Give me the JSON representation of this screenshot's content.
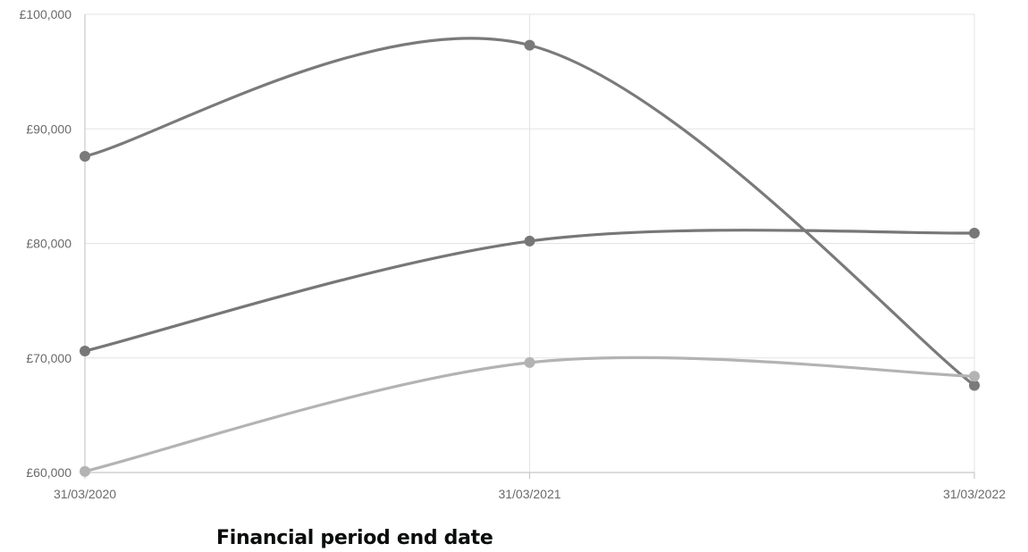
{
  "chart_data": {
    "type": "line",
    "x": [
      "31/03/2020",
      "31/03/2021",
      "31/03/2022"
    ],
    "xlabel": "Financial period end date",
    "ylabel": "",
    "ylim": [
      60000,
      100000
    ],
    "yticks": [
      60000,
      70000,
      80000,
      90000,
      100000
    ],
    "ytick_labels": [
      "£60,000",
      "£70,000",
      "£80,000",
      "£90,000",
      "£100,000"
    ],
    "grid": true,
    "smooth": true,
    "series": [
      {
        "values": [
          87600,
          97300,
          67600
        ],
        "color": "#7a7a7a"
      },
      {
        "values": [
          70600,
          80200,
          80900
        ],
        "color": "#777777"
      },
      {
        "values": [
          60100,
          69600,
          68400
        ],
        "color": "#b3b3b3"
      }
    ]
  }
}
